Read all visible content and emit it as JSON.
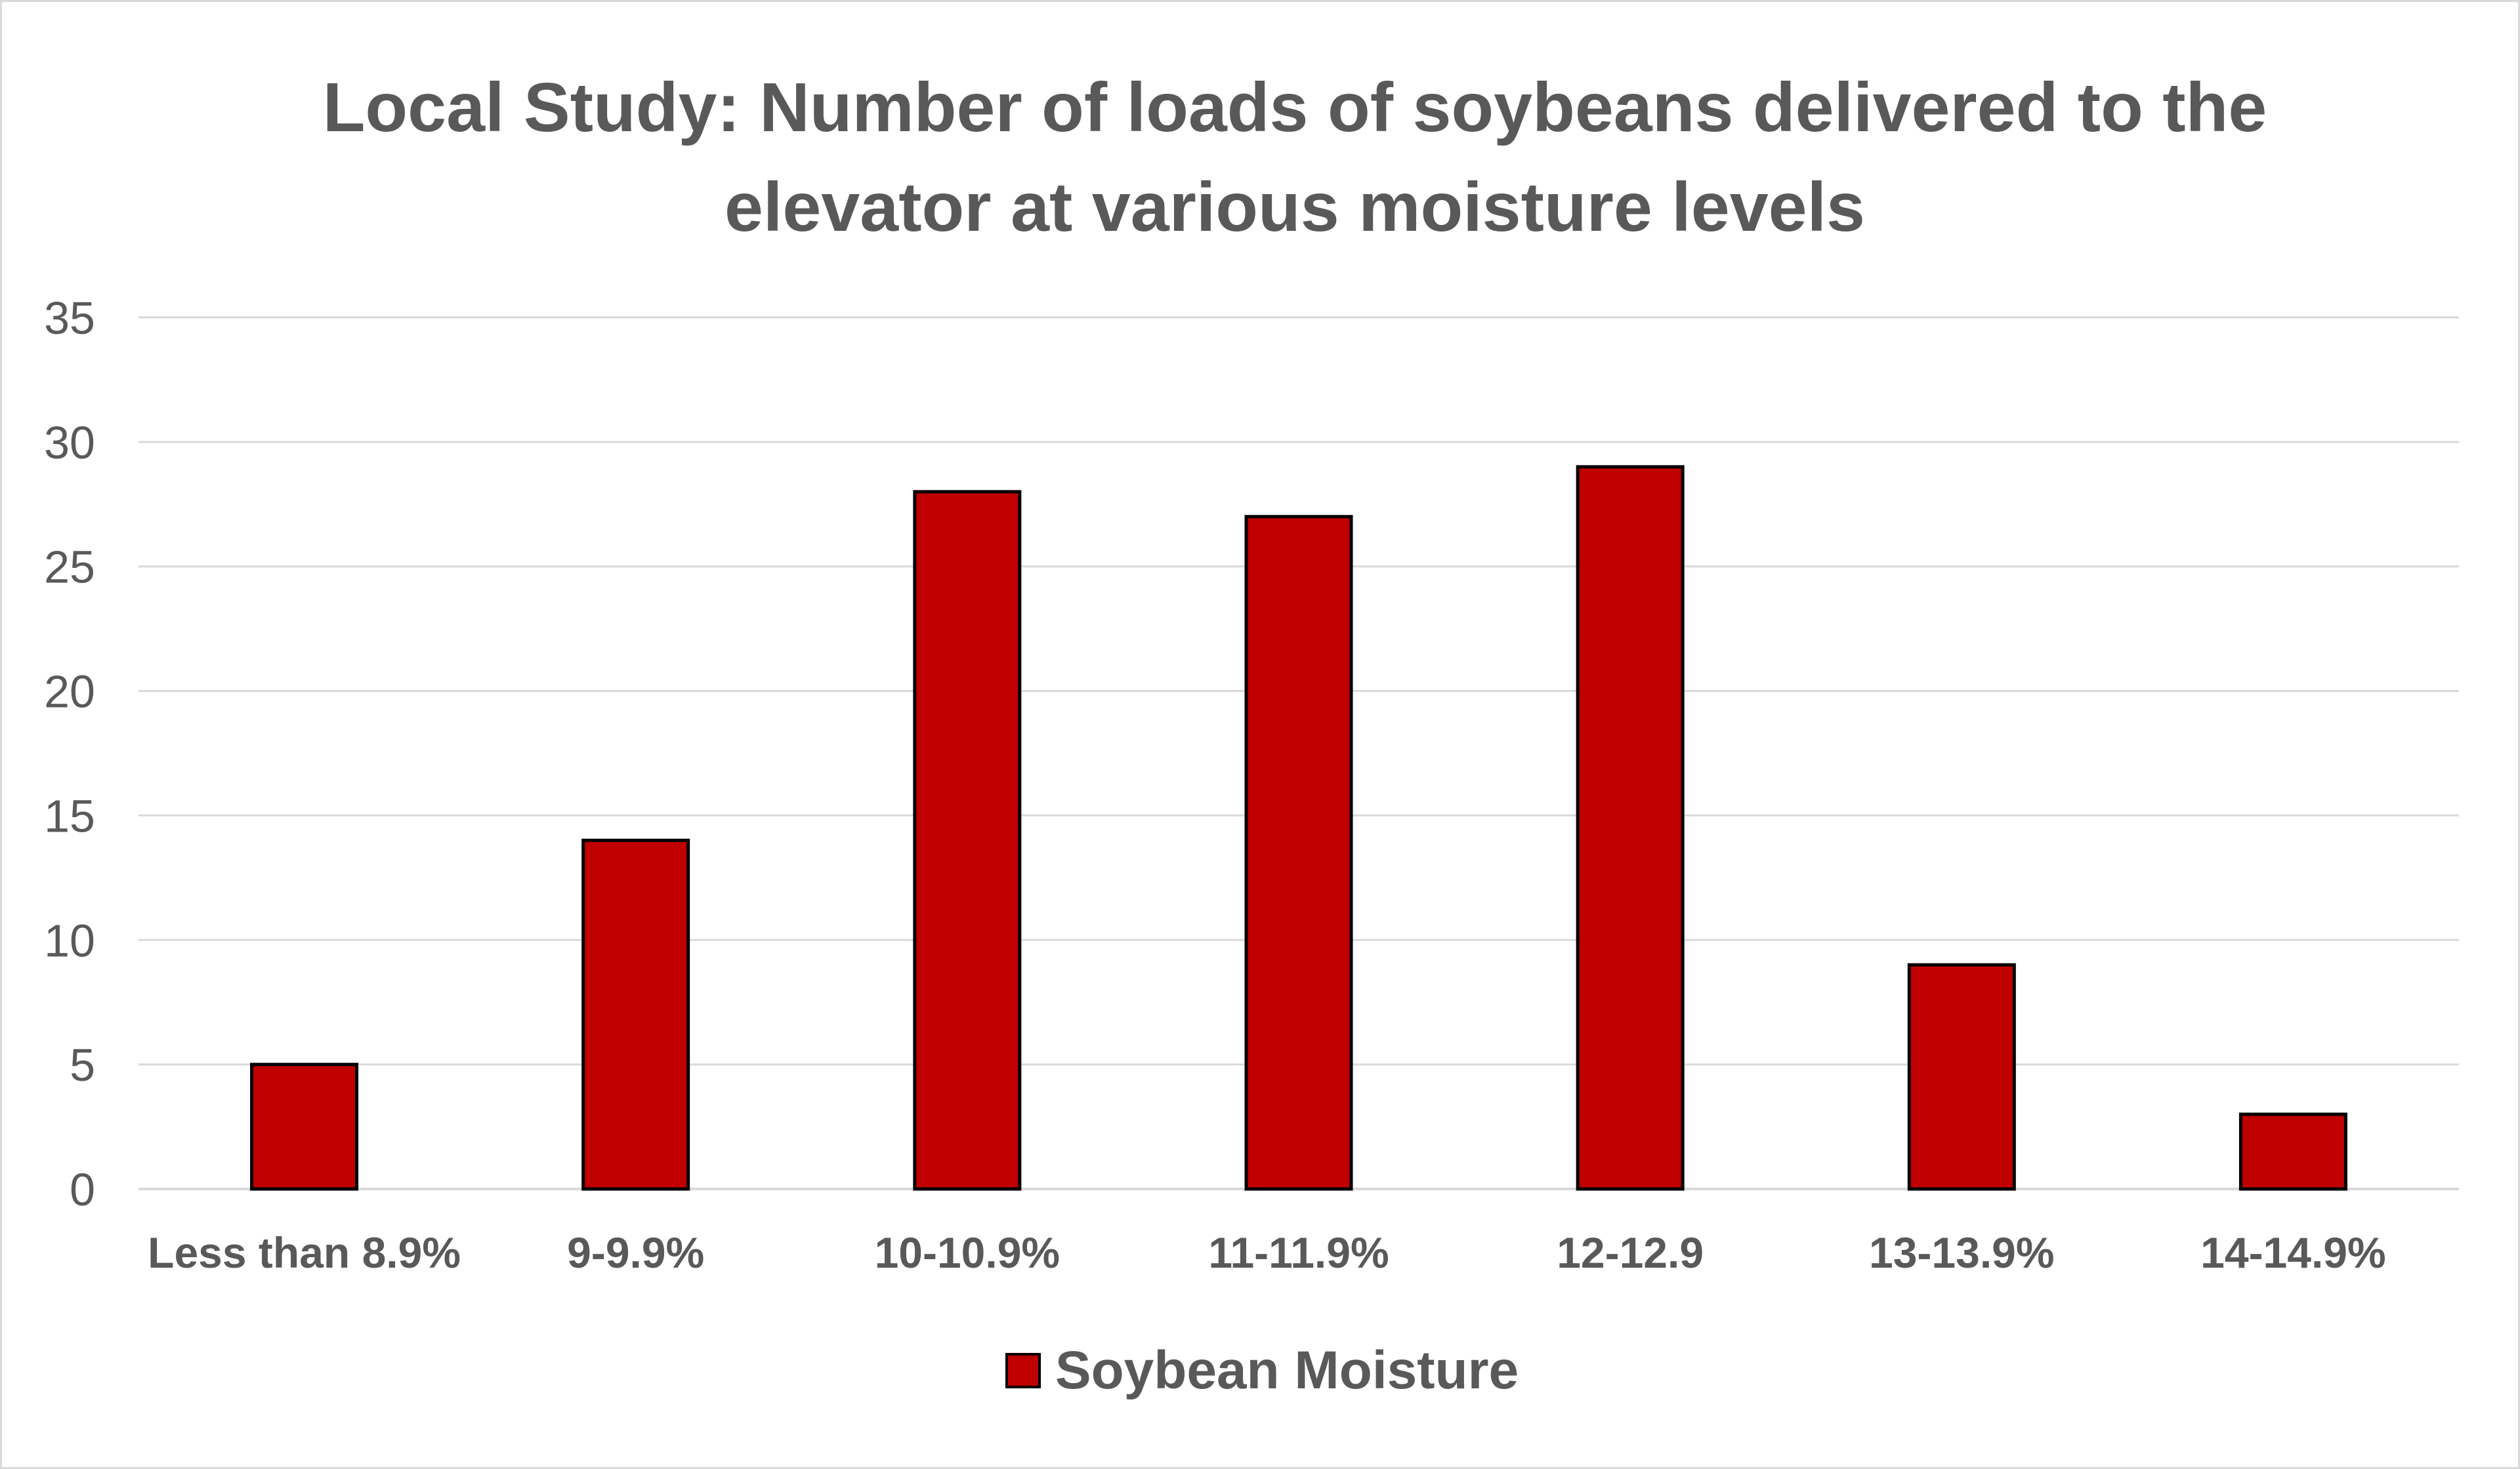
{
  "chart_data": {
    "type": "bar",
    "title": "Local Study: Number of loads of soybeans delivered to the elevator at various moisture levels",
    "categories": [
      "Less than 8.9%",
      "9-9.9%",
      "10-10.9%",
      "11-11.9%",
      "12-12.9",
      "13-13.9%",
      "14-14.9%"
    ],
    "series": [
      {
        "name": "Soybean Moisture",
        "values": [
          5,
          14,
          28,
          27,
          29,
          9,
          3
        ]
      }
    ],
    "ylim": [
      0,
      35
    ],
    "yticks": [
      0,
      5,
      10,
      15,
      20,
      25,
      30,
      35
    ],
    "grid": true,
    "legend_position": "bottom",
    "bar_color": "#c00000",
    "bar_outline_color": "#000000",
    "gridline_color": "#d9d9d9",
    "text_color": "#595959"
  }
}
